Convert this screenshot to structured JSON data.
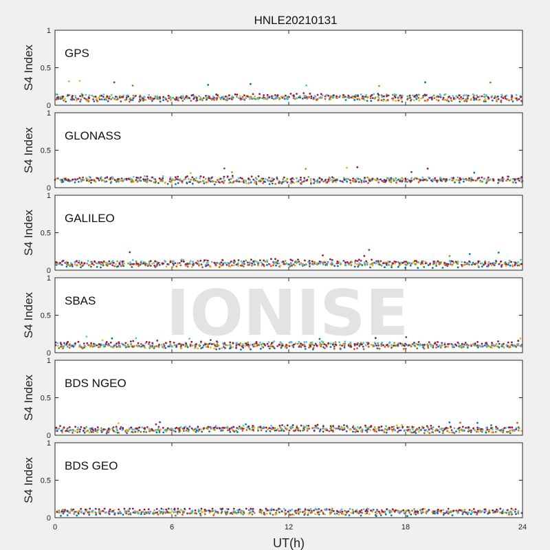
{
  "figure": {
    "title": "HNLE20210131",
    "xlabel": "UT(h)",
    "ylabel": "S4 Index",
    "watermark": "IONISE",
    "colors": [
      "#0072BD",
      "#D95319",
      "#EDB120",
      "#7E2F8E",
      "#77AC30",
      "#4DBEEE",
      "#A2142F"
    ]
  },
  "chart_data": [
    {
      "type": "scatter",
      "panel_label": "GPS",
      "xlim": [
        0,
        24
      ],
      "ylim": [
        0,
        1
      ],
      "xticks": [
        0,
        6,
        12,
        18,
        24
      ],
      "yticks": [
        0,
        0.5,
        1
      ],
      "ytick_labels": [
        "0",
        "0.5",
        "1"
      ],
      "baseline_s4": 0.1,
      "max_s4": 0.33,
      "grid": false
    },
    {
      "type": "scatter",
      "panel_label": "GLONASS",
      "xlim": [
        0,
        24
      ],
      "ylim": [
        0,
        1
      ],
      "xticks": [
        0,
        6,
        12,
        18,
        24
      ],
      "yticks": [
        0,
        0.5,
        1
      ],
      "ytick_labels": [
        "0",
        "0.5",
        "1"
      ],
      "baseline_s4": 0.1,
      "max_s4": 0.28,
      "grid": false
    },
    {
      "type": "scatter",
      "panel_label": "GALILEO",
      "xlim": [
        0,
        24
      ],
      "ylim": [
        0,
        1
      ],
      "xticks": [
        0,
        6,
        12,
        18,
        24
      ],
      "yticks": [
        0,
        0.5,
        1
      ],
      "ytick_labels": [
        "0",
        "0.5",
        "1"
      ],
      "baseline_s4": 0.09,
      "max_s4": 0.28,
      "grid": false
    },
    {
      "type": "scatter",
      "panel_label": "SBAS",
      "xlim": [
        0,
        24
      ],
      "ylim": [
        0,
        1
      ],
      "xticks": [
        0,
        6,
        12,
        18,
        24
      ],
      "yticks": [
        0,
        0.5,
        1
      ],
      "ytick_labels": [
        "0",
        "0.5",
        "1"
      ],
      "baseline_s4": 0.1,
      "max_s4": 0.22,
      "grid": false
    },
    {
      "type": "scatter",
      "panel_label": "BDS NGEO",
      "xlim": [
        0,
        24
      ],
      "ylim": [
        0,
        1
      ],
      "xticks": [
        0,
        6,
        12,
        18,
        24
      ],
      "yticks": [
        0,
        0.5,
        1
      ],
      "ytick_labels": [
        "0",
        "0.5",
        "1"
      ],
      "baseline_s4": 0.08,
      "max_s4": 0.18,
      "grid": false
    },
    {
      "type": "scatter",
      "panel_label": "BDS GEO",
      "xlim": [
        0,
        24
      ],
      "ylim": [
        0,
        1
      ],
      "xticks": [
        0,
        6,
        12,
        18,
        24
      ],
      "yticks": [
        0,
        0.5,
        1
      ],
      "ytick_labels": [
        "0",
        "0.5",
        "1"
      ],
      "baseline_s4": 0.08,
      "max_s4": 0.12,
      "grid": false
    }
  ]
}
